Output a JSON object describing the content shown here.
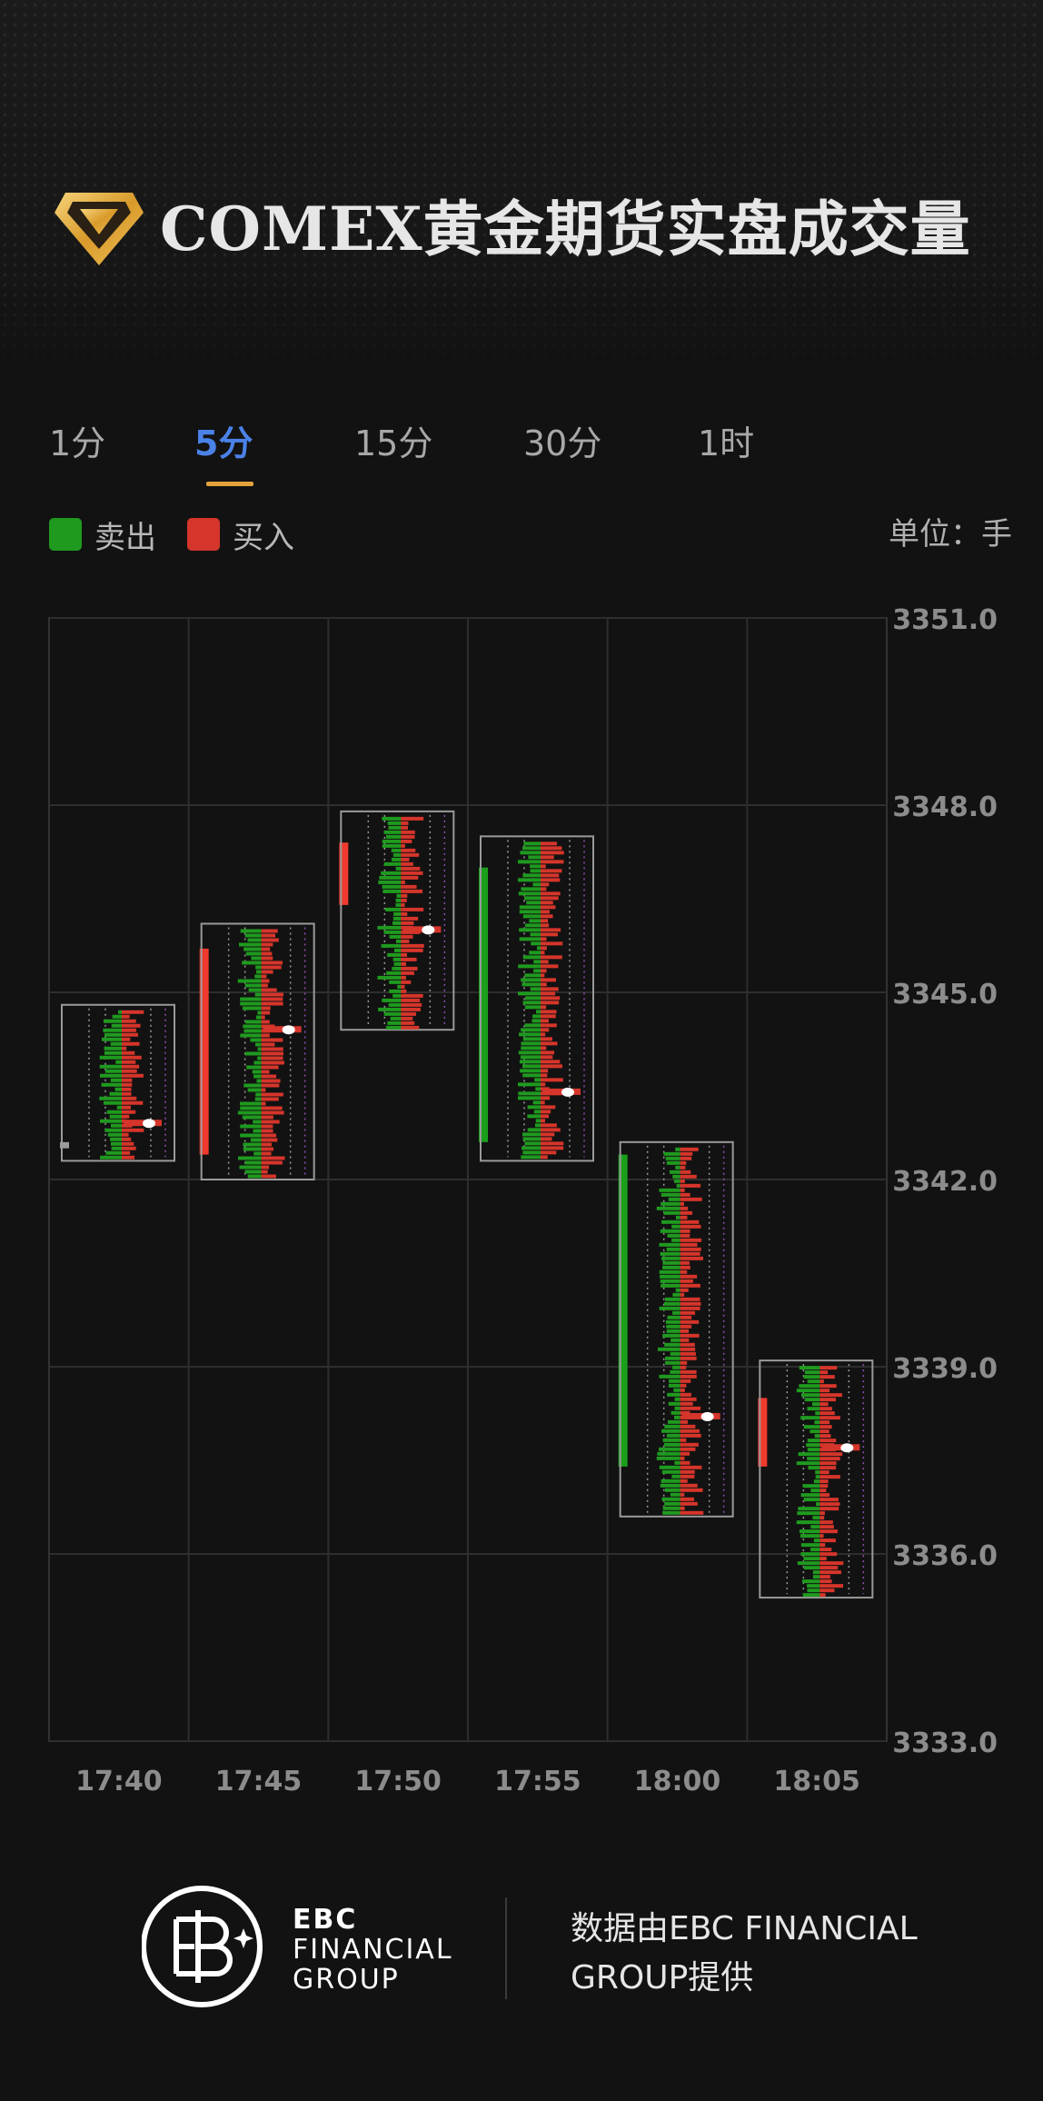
{
  "header": {
    "title": "COMEX黄金期货实盘成交量",
    "logo_icon": "diamond-logo-icon"
  },
  "tabs": [
    {
      "label": "1分",
      "active": false
    },
    {
      "label": "5分",
      "active": true
    },
    {
      "label": "15分",
      "active": false
    },
    {
      "label": "30分",
      "active": false
    },
    {
      "label": "1时",
      "active": false
    }
  ],
  "legend": {
    "sell_label": "卖出",
    "buy_label": "买入",
    "sell_color": "#1f9a1f",
    "buy_color": "#d6352b",
    "unit": "单位：手"
  },
  "chart_data": {
    "type": "candlestick-footprint",
    "categories": [
      "17:40",
      "17:45",
      "17:50",
      "17:55",
      "18:00",
      "18:05"
    ],
    "ylim": [
      3333.0,
      3351.0
    ],
    "yticks": [
      "3351.0",
      "3348.0",
      "3345.0",
      "3342.0",
      "3339.0",
      "3336.0",
      "3333.0"
    ],
    "grid": true,
    "candles": [
      {
        "time": "17:40",
        "open": 3342.6,
        "close": 3342.5,
        "profile_low": 3342.3,
        "profile_high": 3344.8,
        "poc": 3342.9,
        "direction": "flat"
      },
      {
        "time": "17:45",
        "open": 3342.4,
        "close": 3345.7,
        "profile_low": 3342.0,
        "profile_high": 3346.1,
        "poc": 3344.4,
        "direction": "up"
      },
      {
        "time": "17:50",
        "open": 3346.4,
        "close": 3347.4,
        "profile_low": 3344.4,
        "profile_high": 3347.9,
        "poc": 3346.0,
        "direction": "up"
      },
      {
        "time": "17:55",
        "open": 3347.0,
        "close": 3342.6,
        "profile_low": 3342.3,
        "profile_high": 3347.5,
        "poc": 3343.4,
        "direction": "down"
      },
      {
        "time": "18:00",
        "open": 3342.4,
        "close": 3337.4,
        "profile_low": 3336.6,
        "profile_high": 3342.6,
        "poc": 3338.2,
        "direction": "down"
      },
      {
        "time": "18:05",
        "open": 3337.4,
        "close": 3338.5,
        "profile_low": 3335.3,
        "profile_high": 3339.1,
        "poc": 3337.7,
        "direction": "up"
      }
    ]
  },
  "footer": {
    "brand_icon": "ebc-logo-icon",
    "brand_line1": "EBC",
    "brand_line2": "FINANCIAL",
    "brand_line3": "GROUP",
    "credit_line1": "数据由EBC FINANCIAL",
    "credit_line2": "GROUP提供"
  }
}
